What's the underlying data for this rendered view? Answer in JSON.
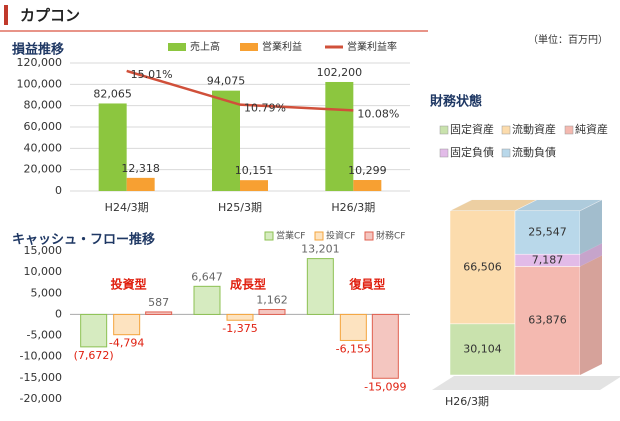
{
  "header": {
    "title": "カプコン",
    "unit": "（単位：百万円）"
  },
  "chart_data": [
    {
      "type": "bar-line",
      "title": "損益推移",
      "categories": [
        "H24/3期",
        "H25/3期",
        "H26/3期"
      ],
      "series": [
        {
          "name": "売上高",
          "color": "#8cc63f",
          "values": [
            82065,
            94075,
            102200
          ],
          "value_labels": [
            "82,065",
            "94,075",
            "102,200"
          ]
        },
        {
          "name": "営業利益",
          "color": "#f7a032",
          "values": [
            12318,
            10151,
            10299
          ],
          "value_labels": [
            "12,318",
            "10,151",
            "10,299"
          ]
        },
        {
          "name": "営業利益率",
          "color": "#d0503a",
          "type": "line",
          "axis": "y2",
          "values": [
            15.01,
            10.79,
            10.08
          ],
          "value_labels": [
            "15.01%",
            "10.79%",
            "10.08%"
          ]
        }
      ],
      "ylim": [
        0,
        120000
      ],
      "yticks": [
        0,
        {
          "value": 20000,
          "label": "20,000"
        },
        {
          "value": 40000,
          "label": "40,000"
        },
        {
          "value": 60000,
          "label": "60,000"
        },
        {
          "value": 80000,
          "label": "80,000"
        },
        {
          "value": 100000,
          "label": "100,000"
        },
        {
          "value": 120000,
          "label": "120,000"
        }
      ],
      "y2lim": [
        0,
        16
      ],
      "grid": true
    },
    {
      "type": "bar",
      "title": "キャッシュ・フロー推移",
      "categories": [
        null,
        null,
        null
      ],
      "annotations": [
        "投資型",
        "成長型",
        "復員型"
      ],
      "series": [
        {
          "name": "営業CF",
          "color": "#d6ebc0",
          "edge": "#8cc152",
          "values": [
            -7672,
            6647,
            13201
          ],
          "value_labels": [
            "(7,672)",
            "6,647",
            "13,201"
          ]
        },
        {
          "name": "投資CF",
          "color": "#fde3c0",
          "edge": "#f4a43c",
          "values": [
            -4794,
            -1375,
            -6155
          ],
          "value_labels": [
            "-4,794",
            "-1,375",
            "-6,155"
          ]
        },
        {
          "name": "財務CF",
          "color": "#f4c6c0",
          "edge": "#e06050",
          "values": [
            587,
            1162,
            -15099
          ],
          "value_labels": [
            "587",
            "1,162",
            "-15,099"
          ]
        }
      ],
      "ylim": [
        -20000,
        15000
      ],
      "yticks": [
        {
          "value": -20000,
          "label": "-20,000"
        },
        {
          "value": -15000,
          "label": "-15,000"
        },
        {
          "value": -10000,
          "label": "-10,000"
        },
        {
          "value": -5000,
          "label": "-5,000"
        },
        0,
        {
          "value": 5000,
          "label": "5,000"
        },
        {
          "value": 10000,
          "label": "10,000"
        },
        {
          "value": 15000,
          "label": "15,000"
        }
      ],
      "grid": false
    },
    {
      "type": "stacked-bar-3d",
      "title": "財務状態",
      "categories": [
        "H26/3期"
      ],
      "series": [
        {
          "name": "固定資産",
          "color": "#c9e2ad",
          "stack": 0,
          "values": [
            30104
          ],
          "value_labels": [
            "30,104"
          ]
        },
        {
          "name": "流動資産",
          "color": "#fcdcad",
          "stack": 0,
          "values": [
            66506
          ],
          "value_labels": [
            "66,506"
          ]
        },
        {
          "name": "純資産",
          "color": "#f4b9b0",
          "stack": 1,
          "values": [
            63876
          ],
          "value_labels": [
            "63,876"
          ]
        },
        {
          "name": "固定負債",
          "color": "#e2bbe8",
          "stack": 1,
          "values": [
            7187
          ],
          "value_labels": [
            "7,187"
          ]
        },
        {
          "name": "流動負債",
          "color": "#b9d8ea",
          "stack": 1,
          "values": [
            25547
          ],
          "value_labels": [
            "25,547"
          ]
        }
      ],
      "ylim": [
        0,
        100000
      ]
    }
  ]
}
